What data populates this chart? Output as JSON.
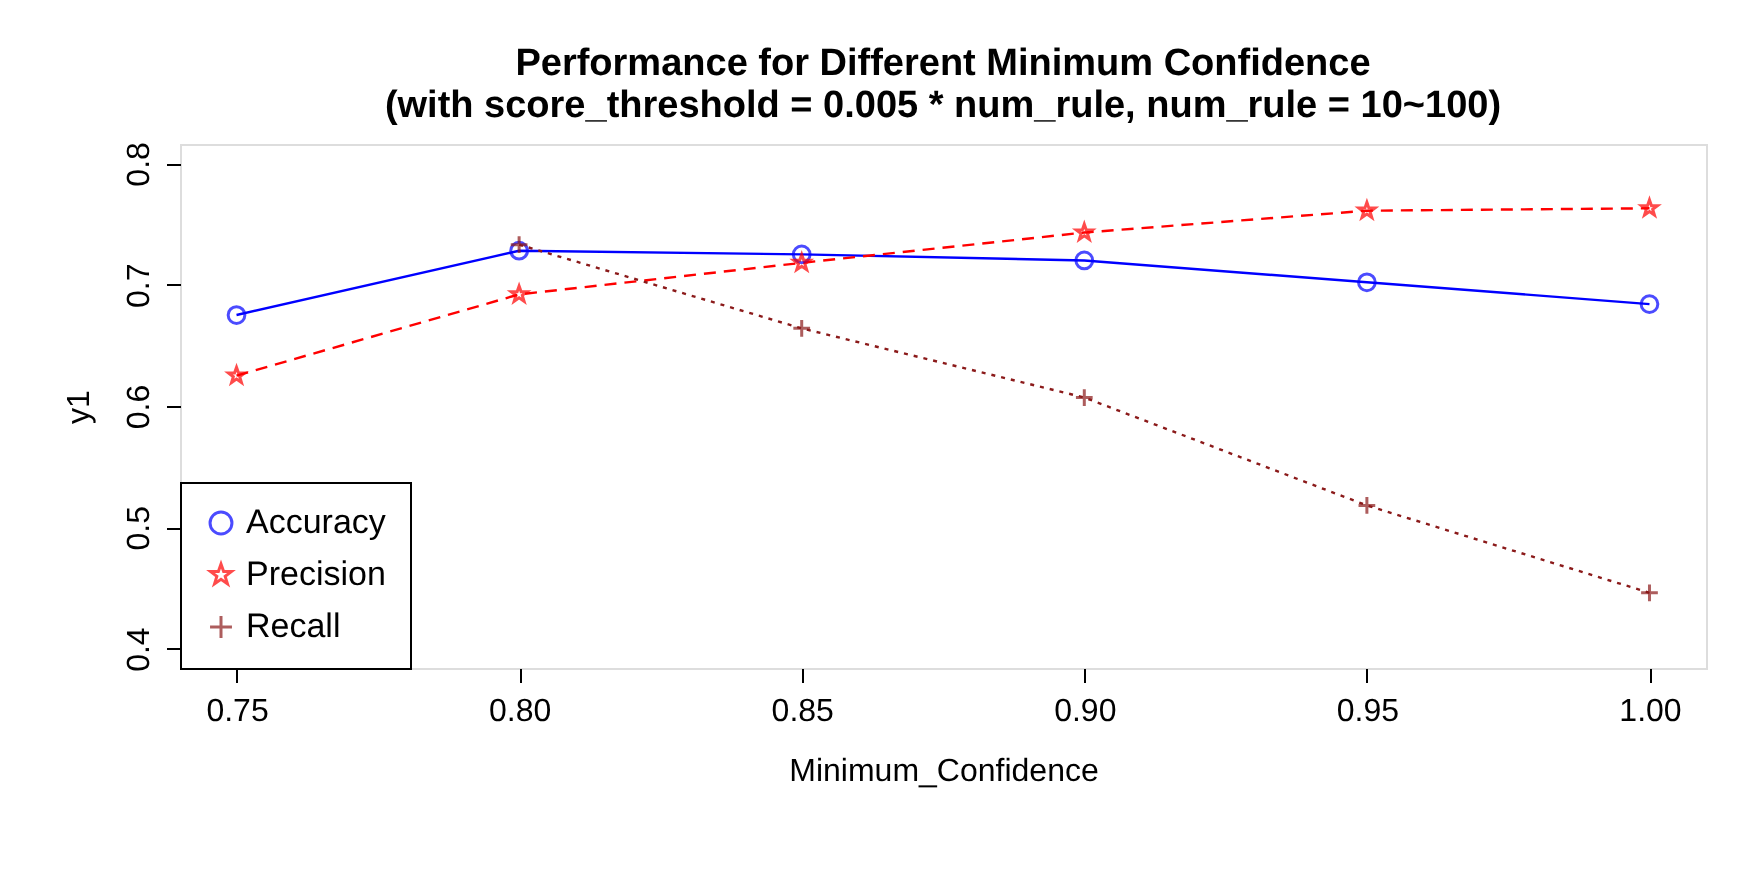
{
  "chart_data": {
    "type": "line",
    "title": "Performance for Different Minimum Confidence\n(with score_threshold = 0.005 * num_rule, num_rule = 10~100)",
    "xlabel": "Minimum_Confidence",
    "ylabel": "y1",
    "x": [
      0.75,
      0.8,
      0.85,
      0.9,
      0.95,
      1.0
    ],
    "series": [
      {
        "name": "Accuracy",
        "color": "#0000ff",
        "marker": "circle",
        "line_style": "solid",
        "values": [
          0.675,
          0.728,
          0.725,
          0.72,
          0.702,
          0.684
        ]
      },
      {
        "name": "Precision",
        "color": "#ff0000",
        "marker": "star",
        "line_style": "dashed",
        "values": [
          0.625,
          0.692,
          0.718,
          0.743,
          0.761,
          0.763
        ]
      },
      {
        "name": "Recall",
        "color": "#8b1a1a",
        "marker": "cross",
        "line_style": "dotted",
        "values": [
          null,
          0.733,
          0.664,
          0.607,
          0.518,
          0.446
        ]
      }
    ],
    "xlim": [
      0.74,
      1.01
    ],
    "xticks": [
      {
        "value": 0.75,
        "label": "0.75"
      },
      {
        "value": 0.8,
        "label": "0.80"
      },
      {
        "value": 0.85,
        "label": "0.85"
      },
      {
        "value": 0.9,
        "label": "0.90"
      },
      {
        "value": 0.95,
        "label": "0.95"
      },
      {
        "value": 1.0,
        "label": "1.00"
      }
    ],
    "ylim": [
      0.384,
      0.816
    ],
    "yticks": [
      0.4,
      0.5,
      0.6,
      0.7,
      0.8
    ],
    "grid": false,
    "legend": "bottom left"
  }
}
